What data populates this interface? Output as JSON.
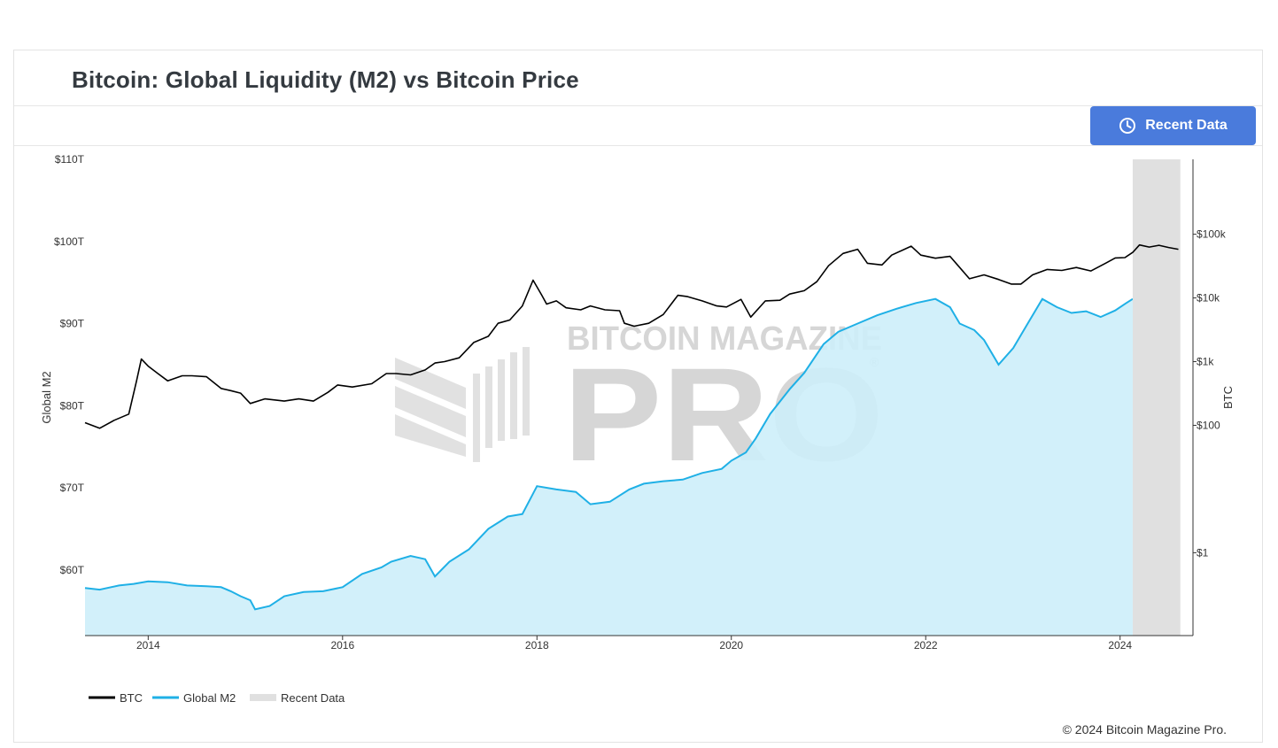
{
  "header": {
    "title": "Bitcoin: Global Liquidity (M2) vs Bitcoin Price",
    "recent_button_label": "Recent Data"
  },
  "footer": {
    "copyright": "© 2024 Bitcoin Magazine Pro."
  },
  "watermark": {
    "line1": "BITCOIN MAGAZINE",
    "line2": "PRO",
    "registered": "®"
  },
  "colors": {
    "btc": "#000000",
    "m2_line": "#1fb0e6",
    "m2_fill": "#cdeefa",
    "recent": "#e0e0e0",
    "button": "#4a7bdc"
  },
  "chart_data": {
    "type": "line",
    "title": "Bitcoin: Global Liquidity (M2) vs Bitcoin Price",
    "x_range": [
      2013.35,
      2024.75
    ],
    "x_ticks": [
      2014,
      2016,
      2018,
      2020,
      2022,
      2024
    ],
    "x_tick_labels": [
      "2014",
      "2016",
      "2018",
      "2020",
      "2022",
      "2024"
    ],
    "left_axis": {
      "title": "Global M2",
      "range": [
        52,
        110
      ],
      "ticks": [
        60,
        70,
        80,
        90,
        100,
        110
      ],
      "tick_labels": [
        "$60T",
        "$70T",
        "$80T",
        "$90T",
        "$100T",
        "$110T"
      ],
      "unit": "trillion USD"
    },
    "right_axis": {
      "title": "BTC",
      "scale": "log",
      "range": [
        0.05,
        1500000
      ],
      "ticks": [
        1,
        100,
        1000,
        10000,
        100000
      ],
      "tick_labels": [
        "$1",
        "$100",
        "$1k",
        "$10k",
        "$100k"
      ]
    },
    "recent_data_range": [
      2024.13,
      2024.62
    ],
    "series": [
      {
        "name": "BTC",
        "axis": "right",
        "style": "line",
        "points": [
          [
            2013.35,
            110
          ],
          [
            2013.5,
            90
          ],
          [
            2013.65,
            120
          ],
          [
            2013.8,
            150
          ],
          [
            2013.88,
            500
          ],
          [
            2013.93,
            1100
          ],
          [
            2014.0,
            850
          ],
          [
            2014.1,
            650
          ],
          [
            2014.2,
            500
          ],
          [
            2014.35,
            600
          ],
          [
            2014.45,
            600
          ],
          [
            2014.6,
            580
          ],
          [
            2014.75,
            380
          ],
          [
            2014.85,
            350
          ],
          [
            2014.95,
            320
          ],
          [
            2015.05,
            220
          ],
          [
            2015.2,
            260
          ],
          [
            2015.4,
            240
          ],
          [
            2015.55,
            260
          ],
          [
            2015.7,
            240
          ],
          [
            2015.85,
            330
          ],
          [
            2015.95,
            430
          ],
          [
            2016.1,
            400
          ],
          [
            2016.3,
            450
          ],
          [
            2016.45,
            650
          ],
          [
            2016.55,
            650
          ],
          [
            2016.7,
            620
          ],
          [
            2016.85,
            740
          ],
          [
            2016.95,
            950
          ],
          [
            2017.05,
            1000
          ],
          [
            2017.2,
            1150
          ],
          [
            2017.35,
            2000
          ],
          [
            2017.5,
            2500
          ],
          [
            2017.6,
            4000
          ],
          [
            2017.72,
            4500
          ],
          [
            2017.85,
            7500
          ],
          [
            2017.96,
            19000
          ],
          [
            2018.05,
            11000
          ],
          [
            2018.1,
            8000
          ],
          [
            2018.2,
            9000
          ],
          [
            2018.3,
            7000
          ],
          [
            2018.45,
            6500
          ],
          [
            2018.55,
            7500
          ],
          [
            2018.7,
            6500
          ],
          [
            2018.85,
            6300
          ],
          [
            2018.9,
            4000
          ],
          [
            2019.0,
            3600
          ],
          [
            2019.15,
            4000
          ],
          [
            2019.3,
            5500
          ],
          [
            2019.45,
            11000
          ],
          [
            2019.55,
            10500
          ],
          [
            2019.7,
            9000
          ],
          [
            2019.85,
            7500
          ],
          [
            2019.95,
            7200
          ],
          [
            2020.1,
            9500
          ],
          [
            2020.2,
            5000
          ],
          [
            2020.35,
            9000
          ],
          [
            2020.5,
            9200
          ],
          [
            2020.6,
            11500
          ],
          [
            2020.75,
            13000
          ],
          [
            2020.88,
            18000
          ],
          [
            2021.0,
            32000
          ],
          [
            2021.15,
            50000
          ],
          [
            2021.3,
            58000
          ],
          [
            2021.4,
            35000
          ],
          [
            2021.55,
            33000
          ],
          [
            2021.65,
            47000
          ],
          [
            2021.85,
            65000
          ],
          [
            2021.95,
            47000
          ],
          [
            2022.1,
            42000
          ],
          [
            2022.25,
            45000
          ],
          [
            2022.35,
            30000
          ],
          [
            2022.45,
            20000
          ],
          [
            2022.6,
            23000
          ],
          [
            2022.75,
            19500
          ],
          [
            2022.88,
            16500
          ],
          [
            2022.98,
            16500
          ],
          [
            2023.1,
            23000
          ],
          [
            2023.25,
            28000
          ],
          [
            2023.4,
            27000
          ],
          [
            2023.55,
            30000
          ],
          [
            2023.7,
            26500
          ],
          [
            2023.85,
            35000
          ],
          [
            2023.95,
            42500
          ],
          [
            2024.05,
            43000
          ],
          [
            2024.13,
            52000
          ],
          [
            2024.2,
            68000
          ],
          [
            2024.3,
            63000
          ],
          [
            2024.4,
            67000
          ],
          [
            2024.5,
            62000
          ],
          [
            2024.6,
            58000
          ]
        ]
      },
      {
        "name": "Global M2",
        "axis": "left",
        "style": "area",
        "points": [
          [
            2013.35,
            57.8
          ],
          [
            2013.5,
            57.6
          ],
          [
            2013.7,
            58.1
          ],
          [
            2013.85,
            58.3
          ],
          [
            2014.0,
            58.6
          ],
          [
            2014.2,
            58.5
          ],
          [
            2014.4,
            58.1
          ],
          [
            2014.6,
            58.0
          ],
          [
            2014.75,
            57.9
          ],
          [
            2014.85,
            57.4
          ],
          [
            2014.95,
            56.8
          ],
          [
            2015.05,
            56.3
          ],
          [
            2015.1,
            55.2
          ],
          [
            2015.25,
            55.6
          ],
          [
            2015.4,
            56.8
          ],
          [
            2015.6,
            57.3
          ],
          [
            2015.8,
            57.4
          ],
          [
            2016.0,
            57.9
          ],
          [
            2016.2,
            59.5
          ],
          [
            2016.4,
            60.3
          ],
          [
            2016.5,
            61.0
          ],
          [
            2016.7,
            61.7
          ],
          [
            2016.85,
            61.3
          ],
          [
            2016.95,
            59.2
          ],
          [
            2017.1,
            61.0
          ],
          [
            2017.3,
            62.5
          ],
          [
            2017.5,
            65.0
          ],
          [
            2017.7,
            66.5
          ],
          [
            2017.85,
            66.8
          ],
          [
            2018.0,
            70.2
          ],
          [
            2018.2,
            69.8
          ],
          [
            2018.4,
            69.5
          ],
          [
            2018.55,
            68.0
          ],
          [
            2018.75,
            68.3
          ],
          [
            2018.95,
            69.8
          ],
          [
            2019.1,
            70.5
          ],
          [
            2019.3,
            70.8
          ],
          [
            2019.5,
            71.0
          ],
          [
            2019.7,
            71.8
          ],
          [
            2019.9,
            72.3
          ],
          [
            2020.0,
            73.3
          ],
          [
            2020.15,
            74.3
          ],
          [
            2020.25,
            76.0
          ],
          [
            2020.4,
            79.0
          ],
          [
            2020.6,
            82.0
          ],
          [
            2020.75,
            84.0
          ],
          [
            2020.95,
            87.5
          ],
          [
            2021.1,
            89.0
          ],
          [
            2021.3,
            90.0
          ],
          [
            2021.5,
            91.0
          ],
          [
            2021.7,
            91.8
          ],
          [
            2021.9,
            92.5
          ],
          [
            2022.1,
            93.0
          ],
          [
            2022.25,
            92.0
          ],
          [
            2022.35,
            90.0
          ],
          [
            2022.5,
            89.2
          ],
          [
            2022.6,
            88.0
          ],
          [
            2022.75,
            85.0
          ],
          [
            2022.9,
            87.0
          ],
          [
            2023.05,
            90.0
          ],
          [
            2023.2,
            93.0
          ],
          [
            2023.35,
            92.0
          ],
          [
            2023.5,
            91.3
          ],
          [
            2023.65,
            91.5
          ],
          [
            2023.8,
            90.8
          ],
          [
            2023.95,
            91.6
          ],
          [
            2024.05,
            92.4
          ],
          [
            2024.13,
            93.0
          ]
        ]
      },
      {
        "name": "Recent Data",
        "axis": "right",
        "style": "band"
      }
    ],
    "legend": [
      "BTC",
      "Global M2",
      "Recent Data"
    ],
    "legend_position": "bottom-left",
    "grid": false
  }
}
